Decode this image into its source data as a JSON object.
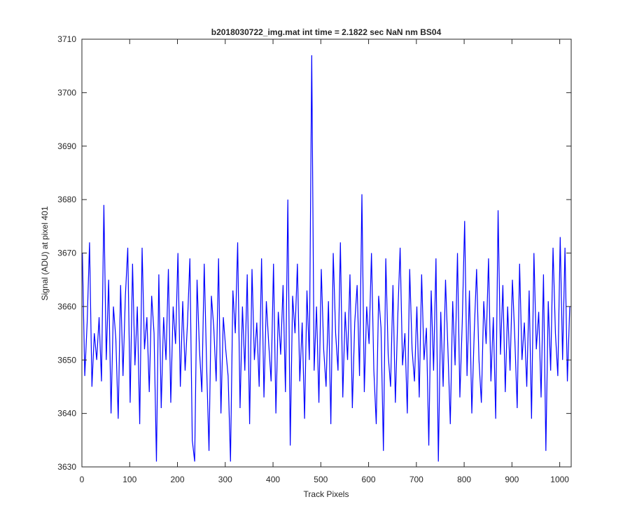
{
  "chart_data": {
    "type": "line",
    "title": "b2018030722_img.mat int time = 2.1822 sec  NaN nm BS04",
    "xlabel": "Track Pixels",
    "ylabel": "Signal (ADU) at pixel 401",
    "xlim": [
      0,
      1024
    ],
    "ylim": [
      3630,
      3710
    ],
    "xticks": [
      0,
      100,
      200,
      300,
      400,
      500,
      600,
      700,
      800,
      900,
      1000
    ],
    "yticks": [
      3630,
      3640,
      3650,
      3660,
      3670,
      3680,
      3690,
      3700,
      3710
    ],
    "x": [
      1,
      6,
      11,
      16,
      21,
      26,
      31,
      36,
      41,
      46,
      51,
      56,
      61,
      66,
      71,
      76,
      81,
      86,
      91,
      96,
      101,
      106,
      111,
      116,
      121,
      126,
      131,
      136,
      141,
      146,
      151,
      156,
      161,
      166,
      171,
      176,
      181,
      186,
      191,
      196,
      201,
      206,
      211,
      216,
      221,
      226,
      231,
      236,
      241,
      246,
      251,
      256,
      261,
      266,
      271,
      276,
      281,
      286,
      291,
      296,
      301,
      306,
      311,
      316,
      321,
      326,
      331,
      336,
      341,
      346,
      351,
      356,
      361,
      366,
      371,
      376,
      381,
      386,
      391,
      396,
      401,
      406,
      411,
      416,
      421,
      426,
      431,
      436,
      441,
      446,
      451,
      456,
      461,
      466,
      471,
      476,
      481,
      486,
      491,
      496,
      501,
      506,
      511,
      516,
      521,
      526,
      531,
      536,
      541,
      546,
      551,
      556,
      561,
      566,
      571,
      576,
      581,
      586,
      591,
      596,
      601,
      606,
      611,
      616,
      621,
      626,
      631,
      636,
      641,
      646,
      651,
      656,
      661,
      666,
      671,
      676,
      681,
      686,
      691,
      696,
      701,
      706,
      711,
      716,
      721,
      726,
      731,
      736,
      741,
      746,
      751,
      756,
      761,
      766,
      771,
      776,
      781,
      786,
      791,
      796,
      801,
      806,
      811,
      816,
      821,
      826,
      831,
      836,
      841,
      846,
      851,
      856,
      861,
      866,
      871,
      876,
      881,
      886,
      891,
      896,
      901,
      906,
      911,
      916,
      921,
      926,
      931,
      936,
      941,
      946,
      951,
      956,
      961,
      966,
      971,
      976,
      981,
      986,
      991,
      996,
      1001,
      1006,
      1011,
      1016,
      1021
    ],
    "series": [
      {
        "color": "#0000ff",
        "values": [
          3670,
          3647,
          3657,
          3672,
          3645,
          3655,
          3650,
          3658,
          3646,
          3679,
          3650,
          3665,
          3640,
          3660,
          3654,
          3639,
          3664,
          3647,
          3662,
          3671,
          3642,
          3668,
          3649,
          3660,
          3638,
          3671,
          3652,
          3658,
          3644,
          3662,
          3655,
          3631,
          3666,
          3641,
          3658,
          3650,
          3667,
          3642,
          3660,
          3653,
          3670,
          3645,
          3661,
          3648,
          3657,
          3669,
          3635,
          3631,
          3665,
          3652,
          3644,
          3668,
          3649,
          3633,
          3662,
          3656,
          3646,
          3669,
          3640,
          3658,
          3652,
          3647,
          3631,
          3663,
          3655,
          3672,
          3641,
          3660,
          3648,
          3666,
          3638,
          3667,
          3650,
          3657,
          3645,
          3669,
          3643,
          3661,
          3653,
          3646,
          3668,
          3640,
          3659,
          3651,
          3664,
          3644,
          3680,
          3634,
          3662,
          3655,
          3668,
          3646,
          3657,
          3639,
          3663,
          3650,
          3707,
          3648,
          3660,
          3642,
          3667,
          3652,
          3645,
          3661,
          3638,
          3670,
          3655,
          3648,
          3672,
          3643,
          3659,
          3650,
          3666,
          3641,
          3657,
          3664,
          3647,
          3681,
          3644,
          3660,
          3653,
          3670,
          3648,
          3638,
          3662,
          3656,
          3633,
          3669,
          3651,
          3645,
          3664,
          3642,
          3658,
          3671,
          3649,
          3655,
          3640,
          3667,
          3652,
          3646,
          3660,
          3643,
          3666,
          3650,
          3656,
          3634,
          3663,
          3648,
          3669,
          3631,
          3659,
          3645,
          3665,
          3652,
          3638,
          3661,
          3649,
          3670,
          3643,
          3657,
          3676,
          3647,
          3663,
          3640,
          3655,
          3667,
          3650,
          3642,
          3661,
          3653,
          3669,
          3646,
          3658,
          3639,
          3678,
          3651,
          3664,
          3644,
          3660,
          3648,
          3665,
          3654,
          3641,
          3668,
          3650,
          3657,
          3645,
          3663,
          3639,
          3670,
          3652,
          3659,
          3643,
          3666,
          3633,
          3661,
          3648,
          3671,
          3655,
          3647,
          3673,
          3650,
          3671,
          3646,
          3660
        ]
      }
    ]
  }
}
